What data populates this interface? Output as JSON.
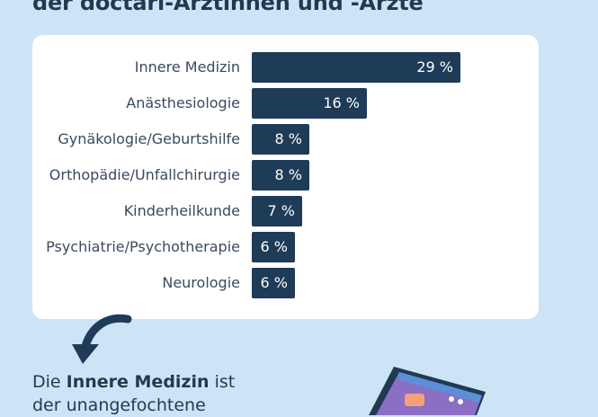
{
  "title": "der doctari-Ärztinnen und -Ärzte",
  "chart_data": {
    "type": "bar",
    "orientation": "horizontal",
    "categories": [
      "Innere Medizin",
      "Anästhesiologie",
      "Gynäkologie/Geburtshilfe",
      "Orthopädie/Unfallchirurgie",
      "Kinderheilkunde",
      "Psychiatrie/Psychotherapie",
      "Neurologie"
    ],
    "values": [
      29,
      16,
      8,
      8,
      7,
      6,
      6
    ],
    "value_labels": [
      "29 %",
      "16 %",
      "8 %",
      "8 %",
      "7 %",
      "6 %",
      "6 %"
    ],
    "bar_color": "#1e3b57",
    "grid": false,
    "legend": "none"
  },
  "caption": {
    "prefix": "Die ",
    "highlight": "Innere Medizin",
    "suffix": " ist",
    "line2": "der unangefochtene"
  },
  "colors": {
    "background": "#cde4f7",
    "card": "#ffffff",
    "text": "#1f3a52"
  }
}
